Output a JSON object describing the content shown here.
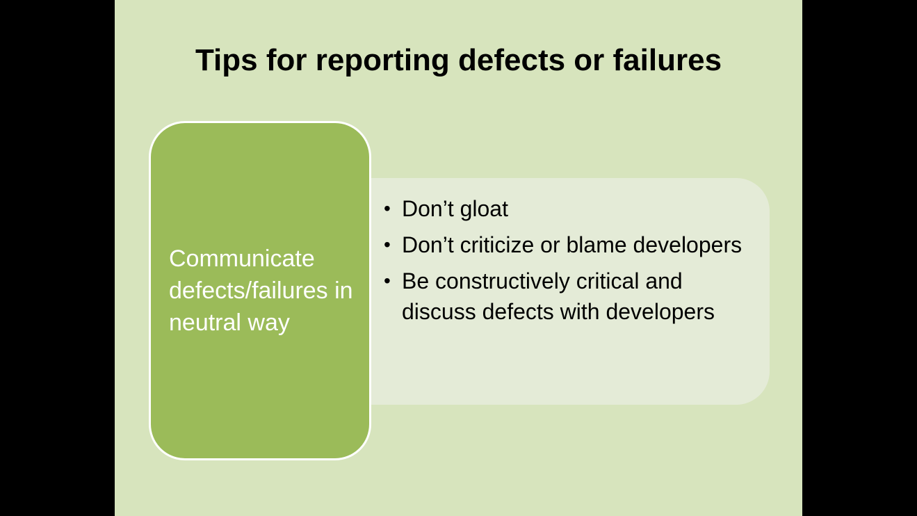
{
  "slide": {
    "title": "Tips for reporting defects or failures",
    "key_point": "Communicate defects/failures in neutral way",
    "bullets": [
      "Don’t gloat",
      "Don’t criticize or blame developers",
      "Be constructively critical and discuss defects with developers"
    ],
    "bullet_glyph": "•"
  },
  "colors": {
    "background": "#000000",
    "slide_background": "#d7e4bd",
    "key_box_fill": "#9bbb59",
    "key_box_border": "#ffffff",
    "content_panel": "#e6ecdc",
    "title_text": "#000000",
    "key_text": "#ffffff"
  }
}
